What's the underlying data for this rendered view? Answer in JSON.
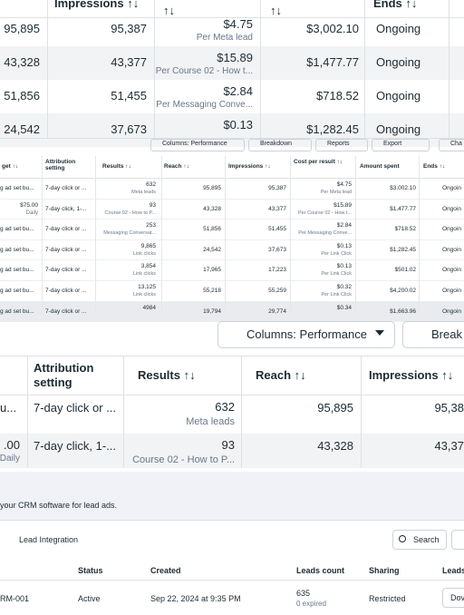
{
  "zoom_top": {
    "headers": [
      "Impressions ↑↓",
      "↑↓",
      "↑↓",
      "Ends ↑↓"
    ],
    "rows": [
      [
        "95,895",
        "95,387",
        "$4.75",
        "Per Meta lead",
        "$3,002.10",
        "Ongoing"
      ],
      [
        "43,328",
        "43,377",
        "$15.89",
        "Per Course 02 - How t...",
        "$1,477.77",
        "Ongoing"
      ],
      [
        "51,856",
        "51,455",
        "$2.84",
        "Per Messaging Conve...",
        "$718.52",
        "Ongoing"
      ],
      [
        "24,542",
        "37,673",
        "$0.13",
        "",
        "$1,282.45",
        "Ongoing"
      ]
    ]
  },
  "small_table": {
    "toolbar": [
      "Columns: Performance",
      "Breakdown",
      "Reports",
      "Export",
      "Cha"
    ],
    "headers": [
      "get ↑↓",
      "Attribution setting",
      "Results ↑↓",
      "Reach ↑↓",
      "Impressions ↑↓",
      "Cost per result ↑↓",
      "Amount spent",
      "Ends ↑↓"
    ],
    "rows": [
      [
        "g ad set bu...",
        "",
        "7-day click or ...",
        "632",
        "Meta leads",
        "95,895",
        "95,387",
        "$4.75",
        "Per Meta lead",
        "$3,002.10",
        "Ongoin"
      ],
      [
        "$75.00",
        "Daily",
        "7-day click, 1-...",
        "93",
        "Course 02 - How to P...",
        "43,328",
        "43,377",
        "$15.89",
        "Per Course 02 - How t...",
        "$1,477.77",
        "Ongoin"
      ],
      [
        "g ad set bu...",
        "",
        "7-day click or ...",
        "253",
        "Messaging Conversat...",
        "51,856",
        "51,455",
        "$2.84",
        "Per Messaging Conve...",
        "$718.52",
        "Ongoin"
      ],
      [
        "g ad set bu...",
        "",
        "7-day click or ...",
        "9,865",
        "Link clicks",
        "24,542",
        "37,673",
        "$0.13",
        "Per Link Click",
        "$1,282.45",
        "Ongoin"
      ],
      [
        "g ad set bu...",
        "",
        "7-day click or ...",
        "3,854",
        "Link clicks",
        "17,965",
        "17,223",
        "$0.13",
        "Per Link Click",
        "$501.02",
        "Ongoin"
      ],
      [
        "g ad set bu...",
        "",
        "7-day click or ...",
        "13,125",
        "Link clicks",
        "55,218",
        "55,259",
        "$0.32",
        "Per Link Click",
        "$4,200.02",
        "Ongoin"
      ],
      [
        "g ad set bu...",
        "",
        "7-day click or ...",
        "4984",
        "",
        "19,794",
        "29,774",
        "$0.34",
        "",
        "$1,663.96",
        "Ongoin"
      ]
    ]
  },
  "zoom_mid": {
    "toolbar": [
      "Columns: Performance",
      "Break"
    ],
    "headers": [
      "",
      "Attribution setting",
      "Results ↑↓",
      "Reach ↑↓",
      "Impressions ↑↓"
    ],
    "rows": [
      [
        "u...",
        "",
        "7-day click or ...",
        "632",
        "Meta leads",
        "95,895",
        "95,38"
      ],
      [
        ".00",
        "Daily",
        "7-day click, 1-...",
        "93",
        "Course 02 - How to P...",
        "43,328",
        "43,37"
      ]
    ]
  },
  "crm": {
    "banner": "your CRM software for lead ads.",
    "tab": "Lead Integration",
    "search": "Search",
    "headers": [
      "Status",
      "Created",
      "Leads count",
      "Sharing",
      "Leads"
    ],
    "row": [
      "RM-001",
      "Active",
      "Sep 22, 2024 at 9:35 PM",
      "635",
      "0 expired",
      "Restricted",
      "Dov"
    ]
  }
}
